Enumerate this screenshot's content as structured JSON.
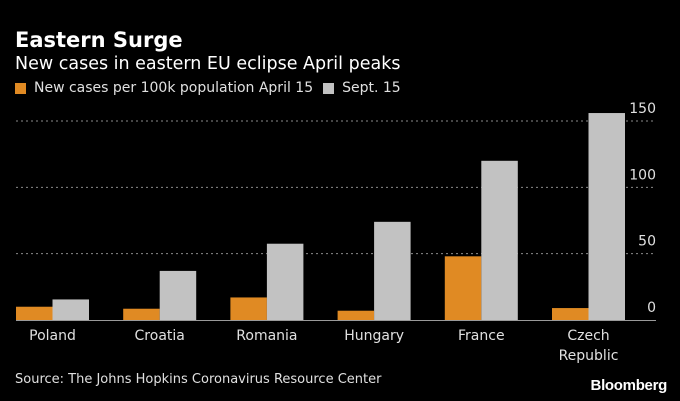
{
  "chart_data": {
    "type": "bar",
    "title": "Eastern Surge",
    "subtitle": "New cases in eastern EU eclipse April peaks",
    "categories": [
      [
        "Poland"
      ],
      [
        "Croatia"
      ],
      [
        "Romania"
      ],
      [
        "Hungary"
      ],
      [
        "France"
      ],
      [
        "Czech",
        "Republic"
      ]
    ],
    "series": [
      {
        "name": "New cases per 100k population April 15",
        "color": "#e08a23",
        "values": [
          10,
          8.5,
          17,
          7,
          48,
          9
        ]
      },
      {
        "name": "Sept. 15",
        "color": "#c2c2c2",
        "values": [
          15.5,
          37,
          57.5,
          74,
          120,
          156
        ]
      }
    ],
    "yticks": [
      0,
      50,
      100,
      150
    ],
    "ylim": [
      0,
      150
    ],
    "xlabel": "",
    "ylabel": "",
    "grid": true,
    "legend_position": "top-left",
    "source": "Source: The Johns Hopkins Coronavirus Resource Center",
    "brand": "Bloomberg"
  }
}
